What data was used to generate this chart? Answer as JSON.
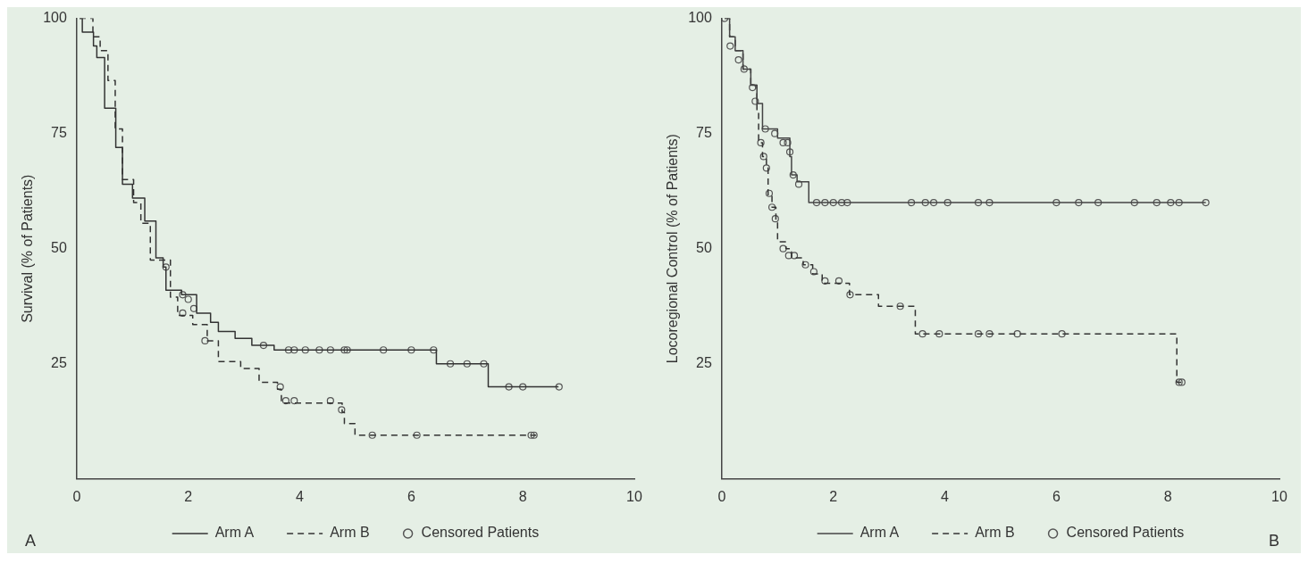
{
  "chart_data": [
    {
      "type": "step",
      "ylabel": "Survival (% of Patients)",
      "xlim": [
        0,
        10
      ],
      "xticks": [
        0,
        2,
        4,
        6,
        8,
        10
      ],
      "ylim": [
        0,
        100
      ],
      "yticks": [
        25,
        50,
        75,
        100
      ],
      "grid": false,
      "legend": "bottom",
      "annotations": [
        "A"
      ],
      "series": [
        {
          "name": "Arm A",
          "color": "#333333",
          "line_style": "solid",
          "marker": "none",
          "x": [
            0.05,
            0.1,
            0.3,
            0.36,
            0.5,
            0.7,
            0.82,
            1.0,
            1.22,
            1.42,
            1.55,
            1.6,
            1.88,
            2.15,
            2.4,
            2.54,
            2.84,
            3.14,
            3.54,
            6.45,
            7.38,
            8.64
          ],
          "values": [
            100,
            97,
            94,
            91.5,
            80.5,
            72,
            64,
            61,
            56,
            48,
            46,
            41,
            40,
            36,
            34,
            32,
            30.5,
            29,
            28,
            25,
            20,
            20
          ]
        },
        {
          "name": "Arm B",
          "color": "#333333",
          "line_style": "dashed",
          "marker": "none",
          "x": [
            0.05,
            0.29,
            0.42,
            0.56,
            0.69,
            0.82,
            1.02,
            1.15,
            1.32,
            1.68,
            1.81,
            2.08,
            2.34,
            2.54,
            2.94,
            3.27,
            3.6,
            3.67,
            4.76,
            4.8,
            4.99,
            8.24
          ],
          "values": [
            100,
            96,
            93,
            86.5,
            76,
            65,
            60,
            55.5,
            47.5,
            39.5,
            35.5,
            33.5,
            30,
            25.5,
            24,
            21,
            19.5,
            16.5,
            14.5,
            12,
            9.5,
            9.5
          ]
        },
        {
          "name": "Censored Patients",
          "type": "scatter",
          "color": "#555555",
          "marker": "circle",
          "x": [
            1.6,
            1.9,
            2.0,
            2.1,
            3.35,
            3.8,
            3.9,
            4.1,
            4.35,
            4.55,
            4.8,
            4.85,
            5.5,
            6.0,
            6.4,
            6.7,
            7.0,
            7.3,
            7.75,
            8.0,
            8.65,
            1.9,
            2.3,
            3.65,
            3.75,
            3.9,
            4.55,
            4.75,
            5.3,
            6.1,
            8.15,
            8.2
          ],
          "values": [
            46,
            40,
            39,
            37,
            29,
            28,
            28,
            28,
            28,
            28,
            28,
            28,
            28,
            28,
            28,
            25,
            25,
            25,
            20,
            20,
            20,
            36,
            30,
            20,
            17,
            17,
            17,
            15,
            9.5,
            9.5,
            9.5,
            9.5
          ]
        }
      ]
    },
    {
      "type": "step",
      "ylabel": "Locoregional Control (% of Patients)",
      "xlim": [
        0,
        10
      ],
      "xticks": [
        0,
        2,
        4,
        6,
        8,
        10
      ],
      "ylim": [
        0,
        100
      ],
      "yticks": [
        25,
        50,
        75,
        100
      ],
      "grid": false,
      "legend": "bottom",
      "annotations": [
        "B"
      ],
      "series": [
        {
          "name": "Arm A",
          "color": "#444444",
          "line_style": "solid",
          "marker": "none",
          "x": [
            0.05,
            0.14,
            0.24,
            0.38,
            0.52,
            0.63,
            0.73,
            1.0,
            1.22,
            1.25,
            1.35,
            1.56,
            8.68
          ],
          "values": [
            100,
            96,
            93,
            89,
            85.5,
            81.5,
            76,
            74,
            70,
            66,
            64.5,
            60,
            60
          ]
        },
        {
          "name": "Arm B",
          "color": "#333333",
          "line_style": "dashed",
          "marker": "none",
          "x": [
            0.05,
            0.14,
            0.24,
            0.38,
            0.52,
            0.63,
            0.66,
            0.73,
            0.8,
            0.83,
            0.9,
            0.97,
            1.0,
            1.15,
            1.25,
            1.46,
            1.63,
            1.8,
            2.29,
            2.81,
            3.47,
            8.16,
            8.3
          ],
          "values": [
            100,
            96,
            93,
            89,
            85.5,
            79.5,
            73,
            70,
            67.5,
            61.5,
            59,
            56,
            51.5,
            50,
            48,
            46.5,
            44.5,
            42.5,
            40,
            37.5,
            31.5,
            21,
            21
          ]
        },
        {
          "name": "Censored Patients",
          "type": "scatter",
          "color": "#555555",
          "marker": "circle",
          "x": [
            0.05,
            0.15,
            0.3,
            0.4,
            0.55,
            0.6,
            0.78,
            0.95,
            1.1,
            1.18,
            1.22,
            1.28,
            1.38,
            1.7,
            1.85,
            2.0,
            2.15,
            2.25,
            3.4,
            3.65,
            3.8,
            4.05,
            4.6,
            4.8,
            6.0,
            6.4,
            6.75,
            7.4,
            7.8,
            8.05,
            8.2,
            8.68,
            0.7,
            0.75,
            0.8,
            0.85,
            0.9,
            0.96,
            1.1,
            1.2,
            1.3,
            1.5,
            1.65,
            1.85,
            2.1,
            2.3,
            3.2,
            3.6,
            3.9,
            4.6,
            4.8,
            5.3,
            6.1,
            8.2,
            8.25
          ],
          "values": [
            100,
            94,
            91,
            89,
            85,
            82,
            76,
            75,
            73,
            73,
            71,
            66,
            64,
            60,
            60,
            60,
            60,
            60,
            60,
            60,
            60,
            60,
            60,
            60,
            60,
            60,
            60,
            60,
            60,
            60,
            60,
            60,
            73,
            70,
            67.5,
            62,
            59,
            56.5,
            50,
            48.5,
            48.5,
            46.5,
            45,
            43,
            43,
            40,
            37.5,
            31.5,
            31.5,
            31.5,
            31.5,
            31.5,
            31.5,
            21,
            21
          ]
        }
      ]
    }
  ]
}
